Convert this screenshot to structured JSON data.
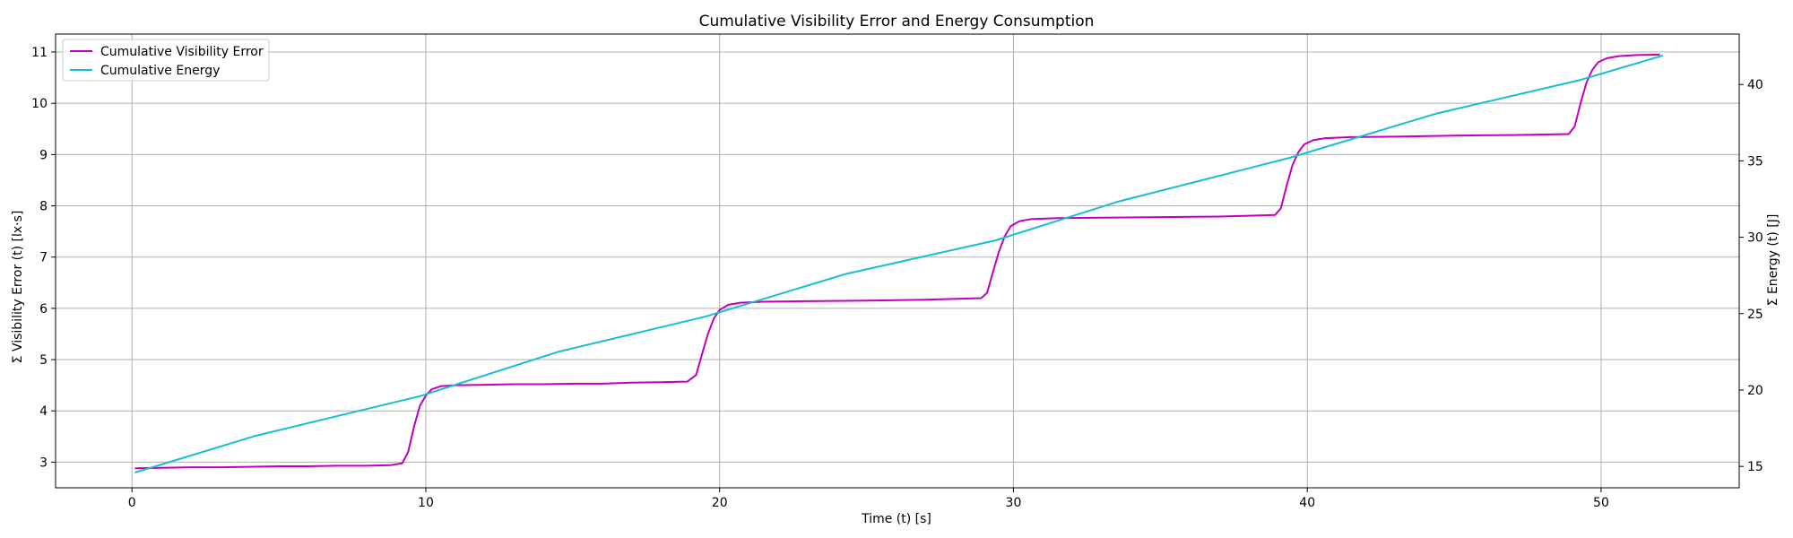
{
  "chart_data": {
    "type": "line",
    "title": "Cumulative Visibility Error and Energy Consumption",
    "xlabel": "Time (t) [s]",
    "ylabel_left": "Σ Visibility Error (t) [lx·s]",
    "ylabel_right": "Σ Energy (t) [J]",
    "xlim": [
      -2.6,
      54.7
    ],
    "ylim_left": [
      2.5,
      11.35
    ],
    "ylim_right": [
      13.6,
      43.3
    ],
    "x_ticks": [
      0,
      10,
      20,
      30,
      40,
      50
    ],
    "y_ticks_left": [
      3,
      4,
      5,
      6,
      7,
      8,
      9,
      10,
      11
    ],
    "y_ticks_right": [
      15,
      20,
      25,
      30,
      35,
      40
    ],
    "grid": true,
    "legend_position": "top-left",
    "colors": {
      "visibility": "#c000c0",
      "energy": "#17becf"
    },
    "series": [
      {
        "name": "Cumulative Visibility Error",
        "axis": "left",
        "color": "#c000c0",
        "points": [
          [
            0.1,
            2.88
          ],
          [
            1,
            2.89
          ],
          [
            2,
            2.9
          ],
          [
            3,
            2.9
          ],
          [
            4,
            2.91
          ],
          [
            5,
            2.92
          ],
          [
            6,
            2.92
          ],
          [
            7,
            2.93
          ],
          [
            8,
            2.93
          ],
          [
            8.8,
            2.94
          ],
          [
            9.2,
            2.98
          ],
          [
            9.4,
            3.2
          ],
          [
            9.6,
            3.7
          ],
          [
            9.8,
            4.1
          ],
          [
            10.0,
            4.3
          ],
          [
            10.2,
            4.42
          ],
          [
            10.5,
            4.48
          ],
          [
            11,
            4.5
          ],
          [
            12,
            4.51
          ],
          [
            13,
            4.52
          ],
          [
            14,
            4.52
          ],
          [
            15,
            4.53
          ],
          [
            16,
            4.53
          ],
          [
            17,
            4.55
          ],
          [
            18,
            4.56
          ],
          [
            18.9,
            4.57
          ],
          [
            19.2,
            4.7
          ],
          [
            19.4,
            5.1
          ],
          [
            19.6,
            5.5
          ],
          [
            19.8,
            5.8
          ],
          [
            20.0,
            5.97
          ],
          [
            20.3,
            6.07
          ],
          [
            20.7,
            6.11
          ],
          [
            21.5,
            6.13
          ],
          [
            23,
            6.14
          ],
          [
            25,
            6.15
          ],
          [
            27,
            6.17
          ],
          [
            28.9,
            6.2
          ],
          [
            29.1,
            6.3
          ],
          [
            29.3,
            6.7
          ],
          [
            29.5,
            7.1
          ],
          [
            29.7,
            7.4
          ],
          [
            29.9,
            7.6
          ],
          [
            30.2,
            7.7
          ],
          [
            30.6,
            7.74
          ],
          [
            31.5,
            7.76
          ],
          [
            33,
            7.77
          ],
          [
            35,
            7.78
          ],
          [
            37,
            7.79
          ],
          [
            38.9,
            7.82
          ],
          [
            39.1,
            7.95
          ],
          [
            39.3,
            8.4
          ],
          [
            39.5,
            8.8
          ],
          [
            39.7,
            9.05
          ],
          [
            39.9,
            9.2
          ],
          [
            40.2,
            9.28
          ],
          [
            40.6,
            9.32
          ],
          [
            41.5,
            9.34
          ],
          [
            43,
            9.35
          ],
          [
            45,
            9.37
          ],
          [
            47,
            9.38
          ],
          [
            48.9,
            9.4
          ],
          [
            49.1,
            9.55
          ],
          [
            49.3,
            10.0
          ],
          [
            49.5,
            10.4
          ],
          [
            49.7,
            10.65
          ],
          [
            49.9,
            10.8
          ],
          [
            50.2,
            10.88
          ],
          [
            50.6,
            10.92
          ],
          [
            51.2,
            10.94
          ],
          [
            52,
            10.95
          ]
        ]
      },
      {
        "name": "Cumulative Energy",
        "axis": "right",
        "color": "#17becf",
        "points": [
          [
            0.1,
            14.6
          ],
          [
            4.2,
            17.0
          ],
          [
            9.8,
            19.6
          ],
          [
            14.5,
            22.5
          ],
          [
            19.5,
            24.8
          ],
          [
            24.3,
            27.6
          ],
          [
            29.4,
            29.8
          ],
          [
            33.5,
            32.3
          ],
          [
            39.4,
            35.2
          ],
          [
            44.4,
            38.1
          ],
          [
            49.3,
            40.3
          ],
          [
            52.1,
            41.9
          ]
        ]
      }
    ]
  }
}
